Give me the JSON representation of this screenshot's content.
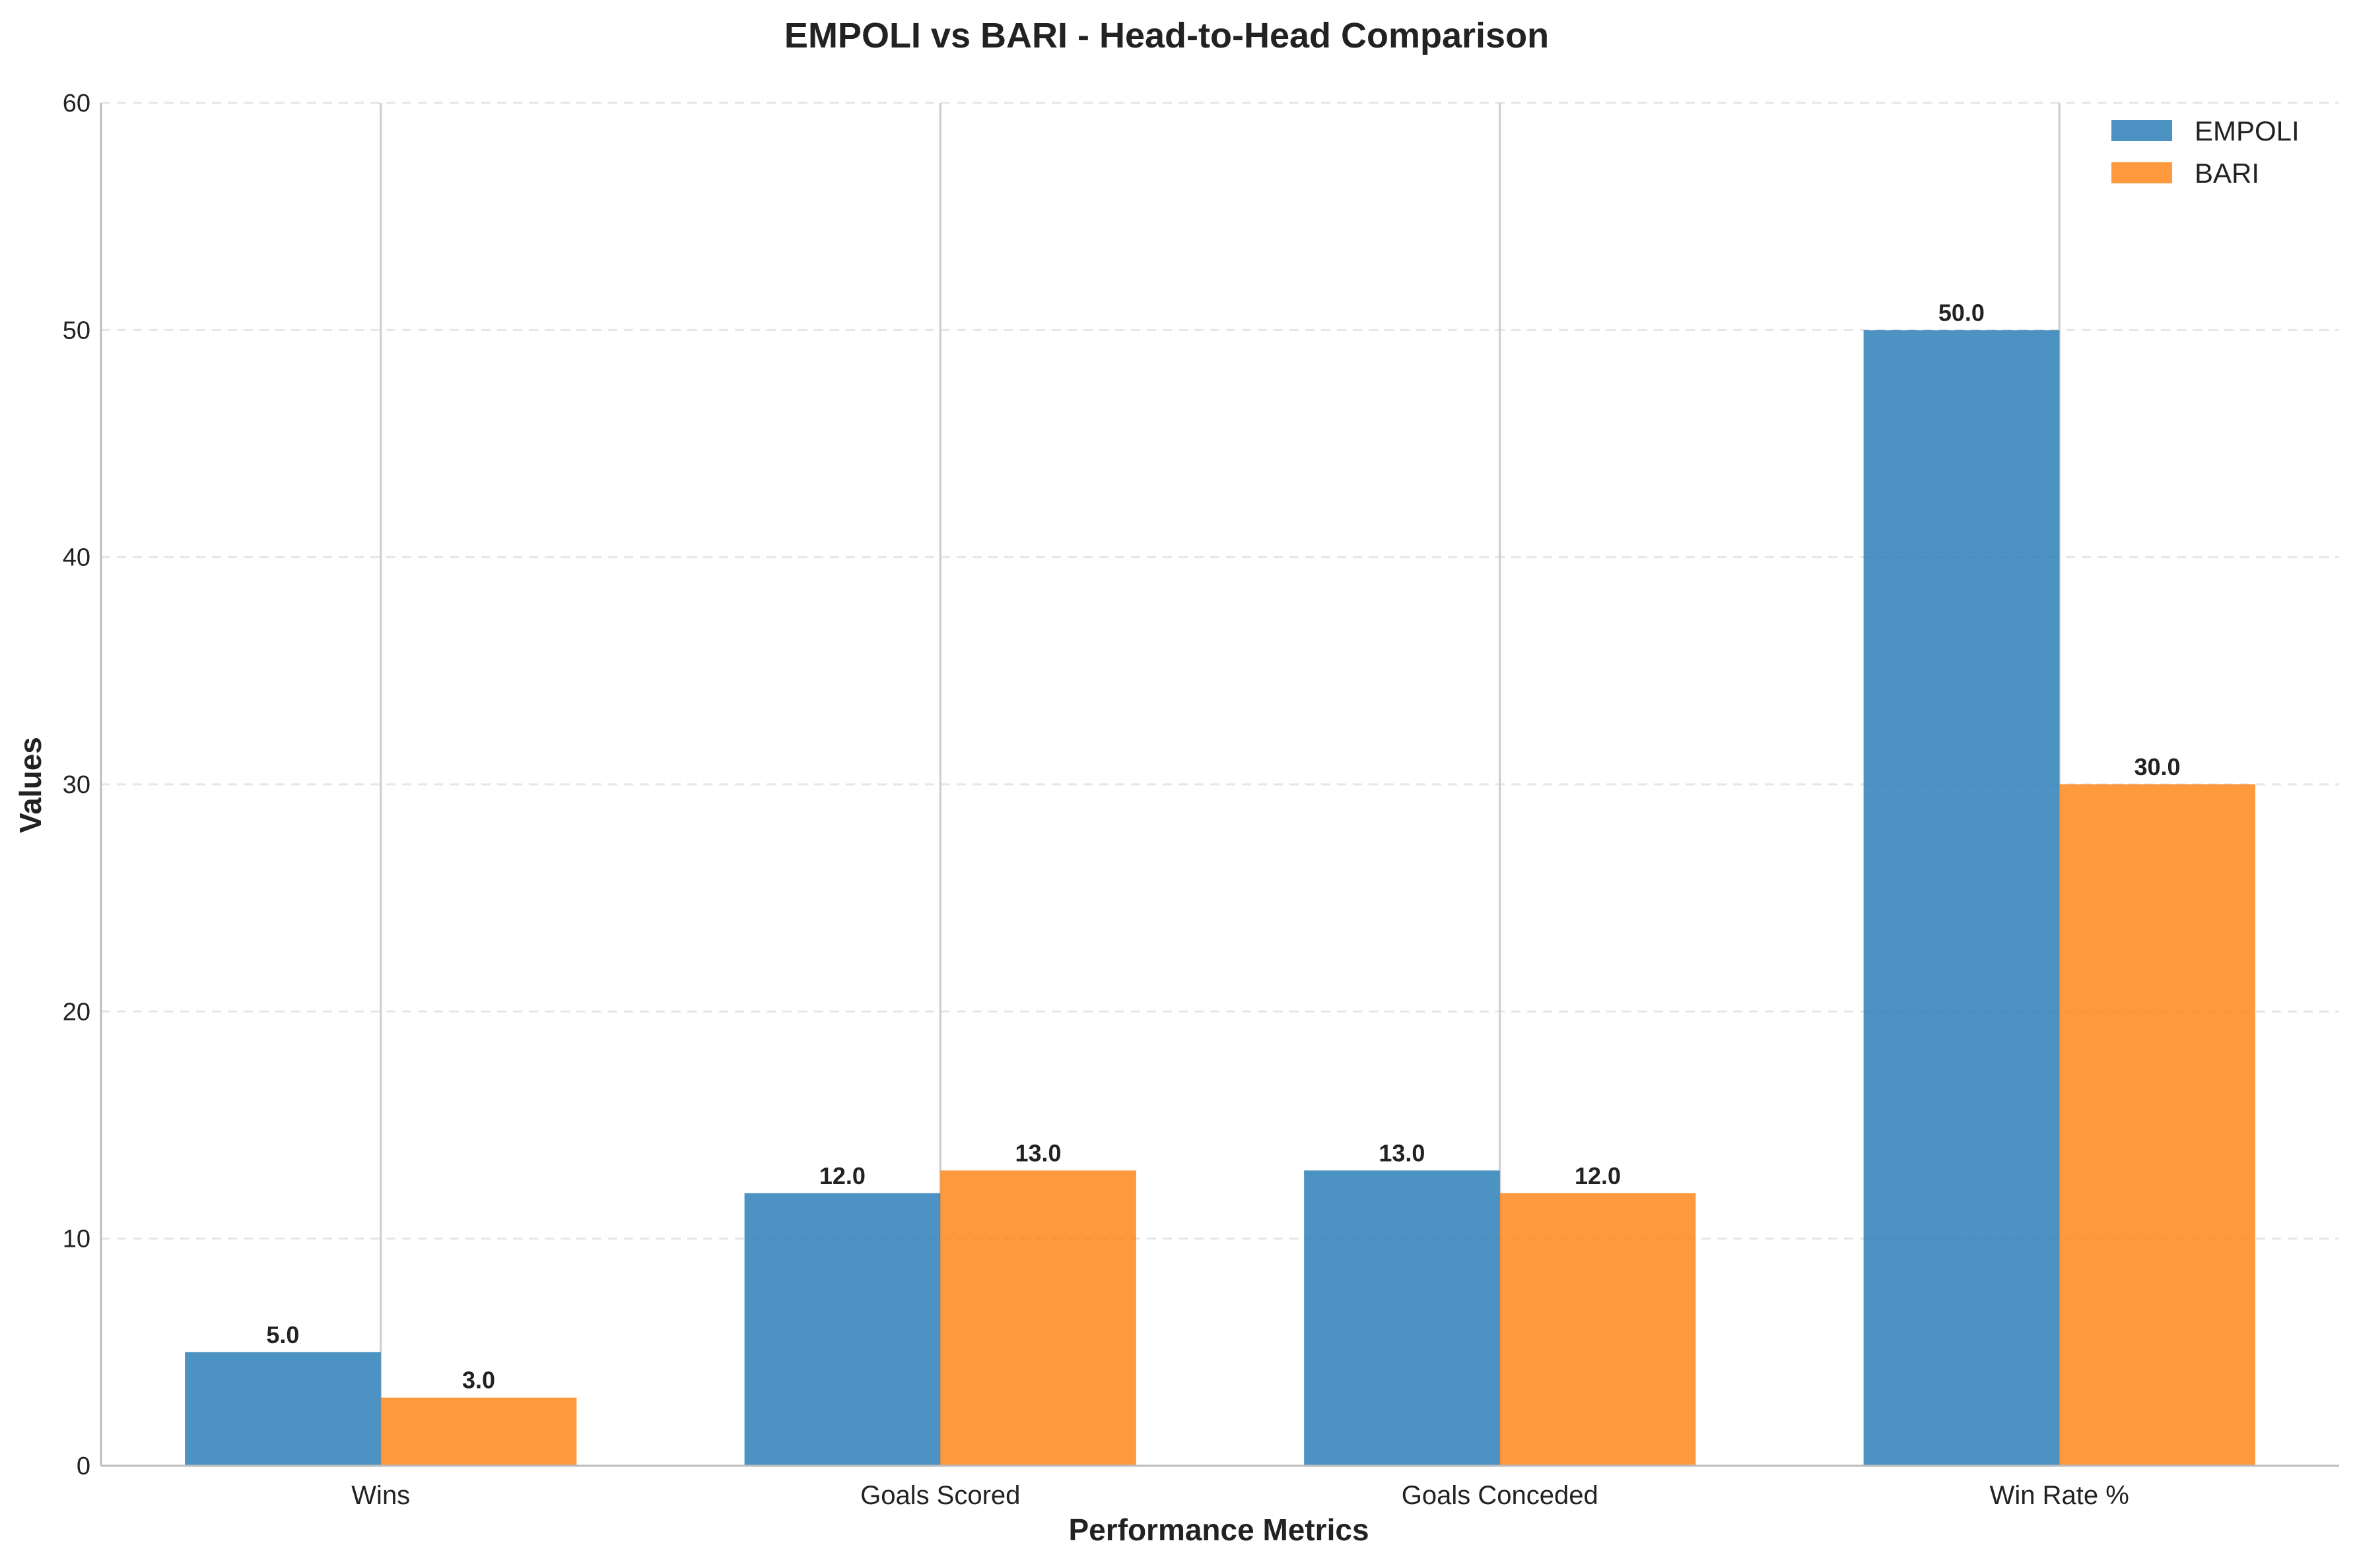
{
  "chart_data": {
    "type": "bar",
    "title": "EMPOLI vs BARI - Head-to-Head Comparison",
    "xlabel": "Performance Metrics",
    "ylabel": "Values",
    "categories": [
      "Wins",
      "Goals Scored",
      "Goals Conceded",
      "Win Rate %"
    ],
    "series": [
      {
        "name": "EMPOLI",
        "values": [
          5.0,
          12.0,
          13.0,
          50.0
        ],
        "color": "#1f77b4"
      },
      {
        "name": "BARI",
        "values": [
          3.0,
          13.0,
          12.0,
          30.0
        ],
        "color": "#ff7f0e"
      }
    ],
    "ylim": [
      0,
      60
    ],
    "yticks": [
      0,
      10,
      20,
      30,
      40,
      50,
      60
    ],
    "value_labels": [
      [
        "5.0",
        "12.0",
        "13.0",
        "50.0"
      ],
      [
        "3.0",
        "13.0",
        "12.0",
        "30.0"
      ]
    ],
    "grid": true,
    "legend_position": "top-right"
  }
}
